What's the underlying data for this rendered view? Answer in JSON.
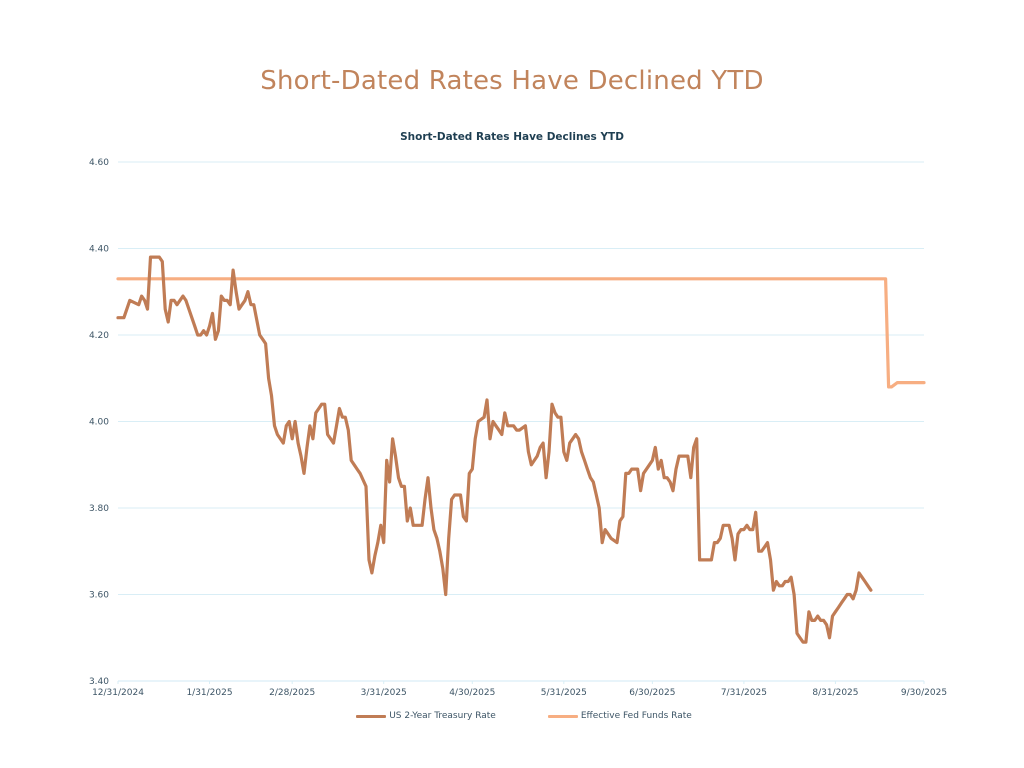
{
  "page": {
    "title": "Short-Dated Rates Have Declined YTD"
  },
  "chart_data": {
    "type": "line",
    "title": "Short-Dated Rates Have Declines YTD",
    "xlabel": "",
    "ylabel": "",
    "ylim": [
      3.4,
      4.6
    ],
    "yticks": [
      "4.60",
      "4.40",
      "4.20",
      "4.00",
      "3.80",
      "3.60",
      "3.40"
    ],
    "ytick_values": [
      4.6,
      4.4,
      4.2,
      4.0,
      3.8,
      3.6,
      3.4
    ],
    "xlim_days": [
      0,
      273
    ],
    "xticks": [
      {
        "label": "12/31/2024",
        "day": 0
      },
      {
        "label": "1/31/2025",
        "day": 31
      },
      {
        "label": "2/28/2025",
        "day": 59
      },
      {
        "label": "3/31/2025",
        "day": 90
      },
      {
        "label": "4/30/2025",
        "day": 120
      },
      {
        "label": "5/31/2025",
        "day": 151
      },
      {
        "label": "6/30/2025",
        "day": 181
      },
      {
        "label": "7/31/2025",
        "day": 212
      },
      {
        "label": "8/31/2025",
        "day": 243
      },
      {
        "label": "9/30/2025",
        "day": 273
      }
    ],
    "grid": true,
    "legend_position": "bottom",
    "series": [
      {
        "name": "US 2-Year Treasury Rate",
        "color": "#c07c55",
        "x_days": [
          0,
          2,
          4,
          7,
          8,
          9,
          10,
          11,
          12,
          14,
          15,
          16,
          17,
          18,
          19,
          20,
          22,
          23,
          24,
          26,
          27,
          28,
          29,
          30,
          31,
          32,
          33,
          34,
          35,
          36,
          37,
          38,
          39,
          40,
          41,
          42,
          43,
          44,
          45,
          46,
          48,
          49,
          50,
          51,
          52,
          53,
          54,
          55,
          56,
          57,
          58,
          59,
          60,
          61,
          62,
          63,
          64,
          65,
          66,
          67,
          68,
          69,
          70,
          71,
          72,
          73,
          74,
          75,
          76,
          77,
          78,
          79,
          80,
          81,
          82,
          84,
          85,
          86,
          87,
          88,
          89,
          90,
          91,
          92,
          93,
          94,
          95,
          96,
          97,
          98,
          99,
          100,
          101,
          102,
          103,
          104,
          105,
          106,
          107,
          108,
          109,
          110,
          111,
          112,
          113,
          114,
          116,
          117,
          118,
          119,
          120,
          121,
          122,
          124,
          125,
          126,
          127,
          128,
          129,
          130,
          131,
          132,
          133,
          134,
          135,
          136,
          138,
          139,
          140,
          141,
          142,
          143,
          144,
          145,
          146,
          147,
          148,
          149,
          150,
          151,
          152,
          153,
          154,
          155,
          156,
          157,
          158,
          159,
          160,
          161,
          162,
          163,
          164,
          165,
          166,
          167,
          169,
          170,
          171,
          172,
          173,
          174,
          175,
          176,
          177,
          178,
          179,
          180,
          181,
          182,
          183,
          184,
          185,
          186,
          187,
          188,
          189,
          190,
          191,
          192,
          193,
          194,
          195,
          196,
          197,
          198,
          199,
          200,
          201,
          202,
          203,
          204,
          205,
          206,
          207,
          208,
          209,
          210,
          211,
          212,
          213,
          214,
          215,
          216,
          217,
          218,
          219,
          220,
          221,
          222,
          223,
          224,
          225,
          226,
          227,
          228,
          229,
          230,
          231,
          232,
          233,
          234,
          235,
          236,
          237,
          238,
          239,
          240,
          241,
          242,
          243,
          244,
          245,
          246,
          247,
          248,
          249,
          250,
          251,
          252,
          253,
          254,
          255,
          256,
          257,
          258,
          259,
          260,
          261,
          262,
          263,
          264,
          265,
          266,
          267,
          268,
          269,
          270,
          271,
          272,
          273
        ],
        "values": [
          4.24,
          4.24,
          4.28,
          4.27,
          4.29,
          4.28,
          4.26,
          4.38,
          4.38,
          4.38,
          4.37,
          4.26,
          4.23,
          4.28,
          4.28,
          4.27,
          4.29,
          4.28,
          4.26,
          4.22,
          4.2,
          4.2,
          4.21,
          4.2,
          4.22,
          4.25,
          4.19,
          4.21,
          4.29,
          4.28,
          4.28,
          4.27,
          4.35,
          4.3,
          4.26,
          4.27,
          4.28,
          4.3,
          4.27,
          4.27,
          4.2,
          4.19,
          4.18,
          4.1,
          4.06,
          3.99,
          3.97,
          3.96,
          3.95,
          3.99,
          4.0,
          3.96,
          4.0,
          3.95,
          3.92,
          3.88,
          3.94,
          3.99,
          3.96,
          4.02,
          4.03,
          4.04,
          4.04,
          3.97,
          3.96,
          3.95,
          3.99,
          4.03,
          4.01,
          4.01,
          3.98,
          3.91,
          3.9,
          3.89,
          3.88,
          3.85,
          3.68,
          3.65,
          3.69,
          3.72,
          3.76,
          3.72,
          3.91,
          3.86,
          3.96,
          3.92,
          3.87,
          3.85,
          3.85,
          3.77,
          3.8,
          3.76,
          3.76,
          3.76,
          3.76,
          3.82,
          3.87,
          3.8,
          3.75,
          3.73,
          3.7,
          3.66,
          3.6,
          3.73,
          3.82,
          3.83,
          3.83,
          3.78,
          3.77,
          3.88,
          3.89,
          3.96,
          4.0,
          4.01,
          4.05,
          3.96,
          4.0,
          3.99,
          3.98,
          3.97,
          4.02,
          3.99,
          3.99,
          3.99,
          3.98,
          3.98,
          3.99,
          3.93,
          3.9,
          3.91,
          3.92,
          3.94,
          3.95,
          3.87,
          3.93,
          4.04,
          4.02,
          4.01,
          4.01,
          3.93,
          3.91,
          3.95,
          3.96,
          3.97,
          3.96,
          3.93,
          3.91,
          3.89,
          3.87,
          3.86,
          3.83,
          3.8,
          3.72,
          3.75,
          3.74,
          3.73,
          3.72,
          3.77,
          3.78,
          3.88,
          3.88,
          3.89,
          3.89,
          3.89,
          3.84,
          3.88,
          3.89,
          3.9,
          3.91,
          3.94,
          3.89,
          3.91,
          3.87,
          3.87,
          3.86,
          3.84,
          3.89,
          3.92,
          3.92,
          3.92,
          3.92,
          3.87,
          3.94,
          3.96,
          3.68,
          3.68,
          3.68,
          3.68,
          3.68,
          3.72,
          3.72,
          3.73,
          3.76,
          3.76,
          3.76,
          3.73,
          3.68,
          3.74,
          3.75,
          3.75,
          3.76,
          3.75,
          3.75,
          3.79,
          3.7,
          3.7,
          3.71,
          3.72,
          3.68,
          3.61,
          3.63,
          3.62,
          3.62,
          3.63,
          3.63,
          3.64,
          3.6,
          3.51,
          3.5,
          3.49,
          3.49,
          3.56,
          3.54,
          3.54,
          3.55,
          3.54,
          3.54,
          3.53,
          3.5,
          3.55,
          3.56,
          3.57,
          3.58,
          3.59,
          3.6,
          3.6,
          3.59,
          3.61,
          3.65,
          3.64,
          3.63,
          3.62,
          3.61
        ]
      },
      {
        "name": "Effective Fed Funds Rate",
        "color": "#f7ae82",
        "x_days": [
          0,
          260,
          261,
          262,
          264,
          266,
          268,
          270,
          273
        ],
        "values": [
          4.33,
          4.33,
          4.08,
          4.08,
          4.09,
          4.09,
          4.09,
          4.09,
          4.09
        ]
      }
    ]
  }
}
